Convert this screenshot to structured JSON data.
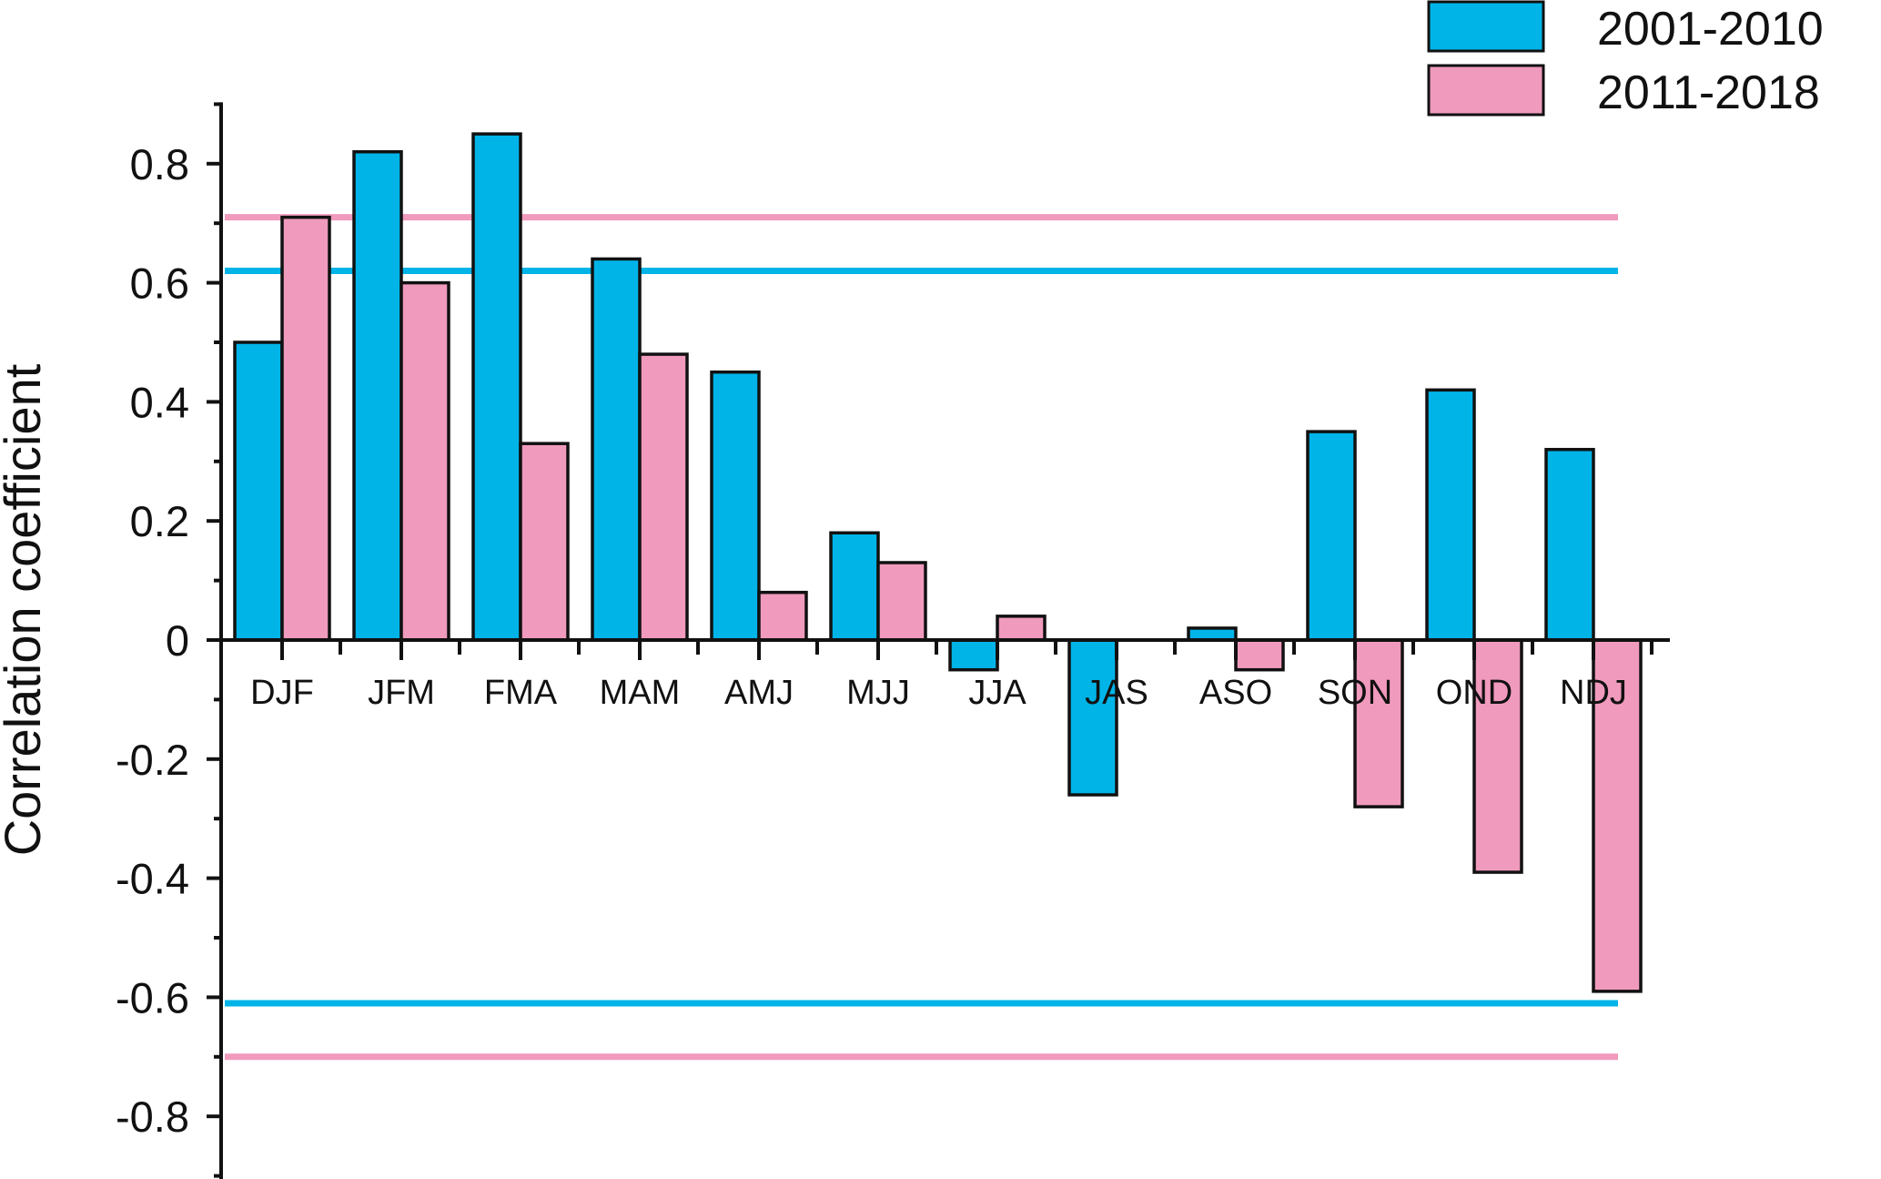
{
  "chart_data": {
    "type": "bar",
    "ylabel": "Correlation coefficient",
    "ylim": [
      -0.9,
      0.9
    ],
    "yticks": [
      -0.8,
      -0.6,
      -0.4,
      -0.2,
      0,
      0.2,
      0.4,
      0.6,
      0.8
    ],
    "ytick_labels": [
      "-0.8",
      "-0.6",
      "-0.4",
      "-0.2",
      "0",
      "0.2",
      "0.4",
      "0.6",
      "0.8"
    ],
    "categories": [
      "DJF",
      "JFM",
      "FMA",
      "MAM",
      "AMJ",
      "MJJ",
      "JJA",
      "JAS",
      "ASO",
      "SON",
      "OND",
      "NDJ"
    ],
    "series": [
      {
        "name": "2001-2010",
        "color": "#00b4e8",
        "values": [
          0.5,
          0.82,
          0.85,
          0.64,
          0.45,
          0.18,
          -0.05,
          -0.26,
          0.02,
          0.35,
          0.42,
          0.32
        ]
      },
      {
        "name": "2011-2018",
        "color": "#f09abd",
        "values": [
          0.71,
          0.6,
          0.33,
          0.48,
          0.08,
          0.13,
          0.04,
          null,
          -0.05,
          -0.28,
          -0.39,
          -0.59
        ]
      }
    ],
    "reference_lines": [
      {
        "series": "2001-2010",
        "values": [
          0.62,
          -0.61
        ],
        "color": "#00b4e8"
      },
      {
        "series": "2011-2018",
        "values": [
          0.71,
          -0.7
        ],
        "color": "#f09abd"
      }
    ],
    "grid": false,
    "legend_position": "top-right"
  }
}
